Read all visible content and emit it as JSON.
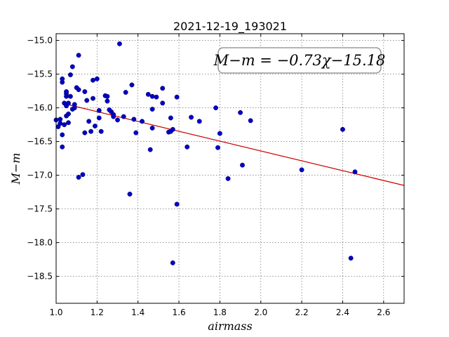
{
  "chart_data": {
    "type": "scatter",
    "title": "2021-12-19_193021",
    "xlabel": "airmass",
    "ylabel": "M−m",
    "xlim": [
      1.0,
      2.7
    ],
    "ylim": [
      -18.9,
      -14.9
    ],
    "y_inverted": true,
    "grid": true,
    "x_ticks": [
      1.0,
      1.2,
      1.4,
      1.6,
      1.8,
      2.0,
      2.2,
      2.4,
      2.6
    ],
    "x_tick_labels": [
      "1.0",
      "1.2",
      "1.4",
      "1.6",
      "1.8",
      "2.0",
      "2.2",
      "2.4",
      "2.6"
    ],
    "y_ticks": [
      -15.0,
      -15.5,
      -16.0,
      -16.5,
      -17.0,
      -17.5,
      -18.0,
      -18.5
    ],
    "y_tick_labels": [
      "−15.0",
      "−15.5",
      "−16.0",
      "−16.5",
      "−17.0",
      "−17.5",
      "−18.0",
      "−18.5"
    ],
    "annotation": "M−m = −0.73χ−15.18",
    "point_color": "#0000c8",
    "fit_color": "#cc0000",
    "fit": {
      "slope": -0.73,
      "intercept": -15.18,
      "x_range": [
        1.03,
        2.7
      ]
    },
    "points": [
      [
        1.0,
        -16.18
      ],
      [
        1.01,
        -16.28
      ],
      [
        1.02,
        -16.17
      ],
      [
        1.02,
        -16.23
      ],
      [
        1.03,
        -16.58
      ],
      [
        1.03,
        -16.4
      ],
      [
        1.03,
        -15.62
      ],
      [
        1.03,
        -15.57
      ],
      [
        1.04,
        -15.93
      ],
      [
        1.04,
        -16.25
      ],
      [
        1.05,
        -15.79
      ],
      [
        1.05,
        -15.76
      ],
      [
        1.05,
        -15.83
      ],
      [
        1.05,
        -16.12
      ],
      [
        1.05,
        -15.97
      ],
      [
        1.06,
        -15.93
      ],
      [
        1.06,
        -16.22
      ],
      [
        1.06,
        -16.09
      ],
      [
        1.07,
        -15.51
      ],
      [
        1.07,
        -15.83
      ],
      [
        1.08,
        -15.39
      ],
      [
        1.08,
        -16.02
      ],
      [
        1.09,
        -15.95
      ],
      [
        1.09,
        -16.0
      ],
      [
        1.1,
        -15.7
      ],
      [
        1.11,
        -15.22
      ],
      [
        1.11,
        -15.73
      ],
      [
        1.11,
        -17.03
      ],
      [
        1.13,
        -16.99
      ],
      [
        1.14,
        -16.37
      ],
      [
        1.14,
        -15.76
      ],
      [
        1.15,
        -15.89
      ],
      [
        1.16,
        -16.2
      ],
      [
        1.17,
        -16.35
      ],
      [
        1.18,
        -15.86
      ],
      [
        1.18,
        -15.59
      ],
      [
        1.19,
        -16.27
      ],
      [
        1.2,
        -15.57
      ],
      [
        1.21,
        -16.04
      ],
      [
        1.21,
        -16.15
      ],
      [
        1.22,
        -16.35
      ],
      [
        1.24,
        -15.82
      ],
      [
        1.25,
        -15.83
      ],
      [
        1.25,
        -15.9
      ],
      [
        1.26,
        -16.03
      ],
      [
        1.27,
        -16.06
      ],
      [
        1.28,
        -16.1
      ],
      [
        1.28,
        -16.13
      ],
      [
        1.3,
        -16.18
      ],
      [
        1.31,
        -15.05
      ],
      [
        1.33,
        -16.13
      ],
      [
        1.34,
        -15.77
      ],
      [
        1.36,
        -17.28
      ],
      [
        1.37,
        -15.66
      ],
      [
        1.38,
        -16.17
      ],
      [
        1.39,
        -16.37
      ],
      [
        1.42,
        -16.2
      ],
      [
        1.45,
        -15.8
      ],
      [
        1.46,
        -16.62
      ],
      [
        1.47,
        -15.83
      ],
      [
        1.47,
        -16.02
      ],
      [
        1.47,
        -16.3
      ],
      [
        1.49,
        -15.84
      ],
      [
        1.52,
        -15.93
      ],
      [
        1.52,
        -15.71
      ],
      [
        1.55,
        -16.36
      ],
      [
        1.56,
        -16.35
      ],
      [
        1.56,
        -16.15
      ],
      [
        1.57,
        -16.32
      ],
      [
        1.57,
        -18.3
      ],
      [
        1.59,
        -15.84
      ],
      [
        1.59,
        -17.43
      ],
      [
        1.64,
        -16.58
      ],
      [
        1.66,
        -16.14
      ],
      [
        1.7,
        -16.2
      ],
      [
        1.78,
        -16.0
      ],
      [
        1.79,
        -16.59
      ],
      [
        1.8,
        -16.38
      ],
      [
        1.84,
        -17.05
      ],
      [
        1.9,
        -16.07
      ],
      [
        1.91,
        -16.85
      ],
      [
        1.95,
        -16.19
      ],
      [
        2.2,
        -16.92
      ],
      [
        2.4,
        -16.32
      ],
      [
        2.44,
        -18.23
      ],
      [
        2.46,
        -16.95
      ]
    ]
  }
}
